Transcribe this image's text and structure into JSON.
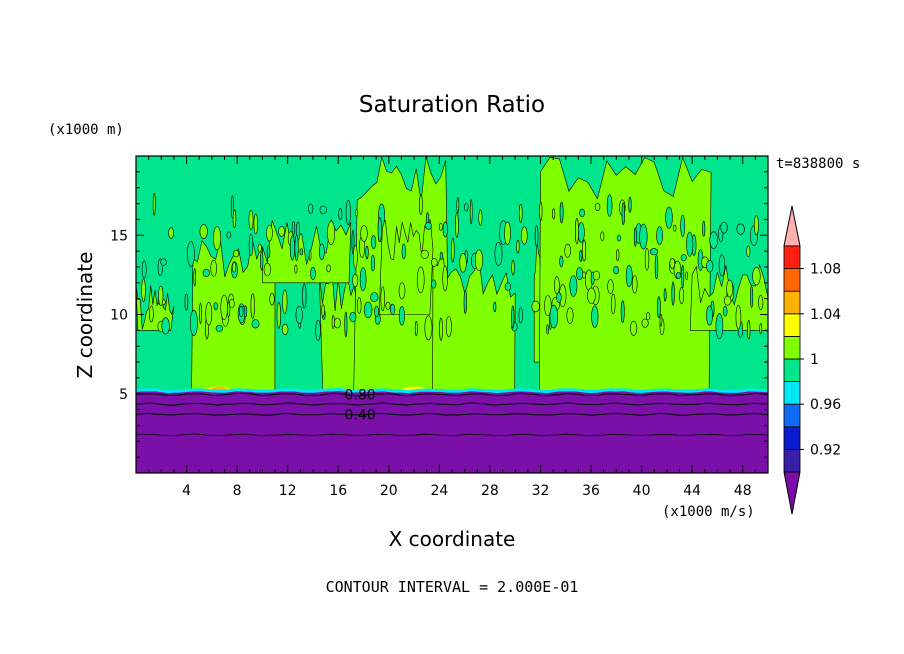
{
  "chart_data": {
    "type": "contour",
    "title": "Saturation Ratio",
    "xlabel": "X coordinate",
    "ylabel": "Z coordinate",
    "x_unit": "(x1000 m/s)",
    "y_unit": "(x1000 m)",
    "time_label": "t=838800 s",
    "footer": "CONTOUR INTERVAL = 2.000E-01",
    "xlim": [
      0,
      50
    ],
    "ylim": [
      0,
      20
    ],
    "x_ticks": [
      4,
      8,
      12,
      16,
      20,
      24,
      28,
      32,
      36,
      40,
      44,
      48
    ],
    "y_ticks": [
      5,
      10,
      15
    ],
    "contour_labels": [
      {
        "text": "0.80",
        "x": 16.5,
        "y": 4.95
      },
      {
        "text": "0.40",
        "x": 16.5,
        "y": 3.7
      }
    ],
    "stratospheric_boundary_z": 5.2,
    "colorbar": {
      "levels": [
        "0.92",
        "0.96",
        "1",
        "1.04",
        "1.08"
      ],
      "bands": [
        {
          "label": "below",
          "color": "#7a0da8"
        },
        {
          "label": "0.92-0.94",
          "color": "#3a1fa8"
        },
        {
          "label": "0.94-0.96",
          "color": "#0a1cd0"
        },
        {
          "label": "0.96-0.98",
          "color": "#0f6cf5"
        },
        {
          "label": "0.98-1.00",
          "color": "#00e6f5"
        },
        {
          "label": "1.00-1.02",
          "color": "#00e68c"
        },
        {
          "label": "1.02-1.04",
          "color": "#80ff00"
        },
        {
          "label": "1.04-1.06",
          "color": "#ffff00"
        },
        {
          "label": "1.06-1.08",
          "color": "#ffb300"
        },
        {
          "label": "1.08-1.10",
          "color": "#ff6600"
        },
        {
          "label": "1.10-1.12",
          "color": "#ff2010"
        },
        {
          "label": "above",
          "color": "#ffb0b0"
        }
      ]
    },
    "colors": {
      "low_region": "#7b10a8",
      "background_field": "#00e68c",
      "supersat_field": "#80ff00",
      "yellow_patch": "#ffff00",
      "orange_patch": "#ffb300",
      "cyan_line": "#00e6f5"
    }
  }
}
